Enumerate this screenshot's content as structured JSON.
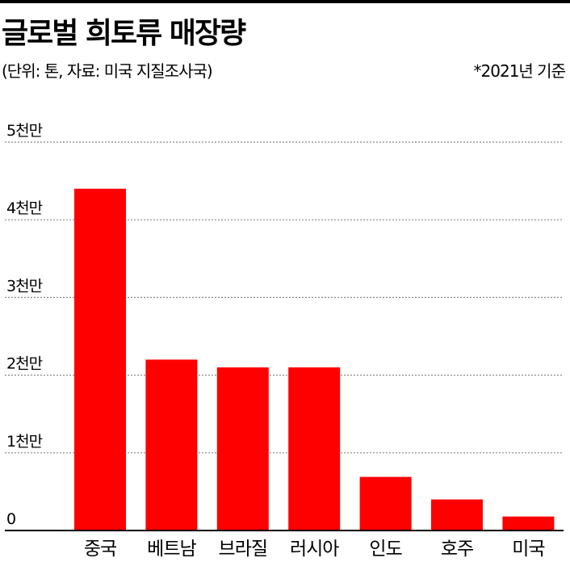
{
  "header": {
    "title": "글로벌 희토류 매장량",
    "subtitle": "(단위: 톤, 자료: 미국 지질조사국)",
    "basis": "*2021년 기준"
  },
  "colors": {
    "bar": "#ff0000",
    "grid": "#888888",
    "axis": "#000000"
  },
  "chart_data": {
    "type": "bar",
    "title": "글로벌 희토류 매장량",
    "unit": "톤",
    "categories": [
      "중국",
      "베트남",
      "브라질",
      "러시아",
      "인도",
      "호주",
      "미국"
    ],
    "values": [
      44000000,
      22000000,
      21000000,
      21000000,
      6900000,
      4000000,
      1800000
    ],
    "yticks": [
      {
        "value": 0,
        "label": "0"
      },
      {
        "value": 10000000,
        "label": "1천만"
      },
      {
        "value": 20000000,
        "label": "2천만"
      },
      {
        "value": 30000000,
        "label": "3천만"
      },
      {
        "value": 40000000,
        "label": "4천만"
      },
      {
        "value": 50000000,
        "label": "5천만"
      }
    ],
    "ylim": [
      0,
      50000000
    ],
    "grid": true,
    "legend": false
  }
}
